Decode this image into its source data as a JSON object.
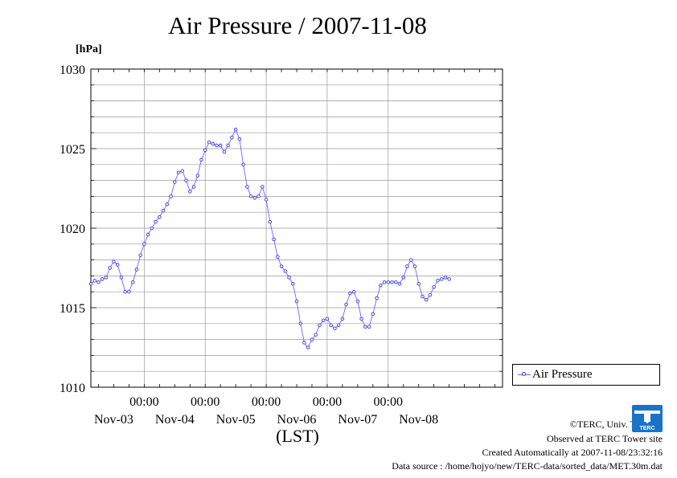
{
  "title": "Air Pressure / 2007-11-08",
  "unit_label": "[hPa]",
  "xlabel": "(LST)",
  "legend": {
    "label": "Air Pressure"
  },
  "credits": {
    "copyright": "©TERC, Univ. Tsukuba",
    "observed": "Observed at TERC Tower site",
    "created": "Created Automatically at 2007-11-08/23:32:16",
    "source": "Data source : /home/hojyo/new/TERC-data/sorted_data/MET.30m.dat"
  },
  "logo_text": "TERC",
  "colors": {
    "series": "#3333ee",
    "line": "#6666ff",
    "grid": "#999999",
    "logo": "#1a73c8"
  },
  "chart_data": {
    "type": "line",
    "title": "Air Pressure / 2007-11-08",
    "ylabel": "[hPa]",
    "xlabel": "(LST)",
    "ylim": [
      1010,
      1030
    ],
    "yticks": [
      1010,
      1015,
      1020,
      1025,
      1030
    ],
    "xlim_hours": [
      -21,
      141
    ],
    "xticks": [
      {
        "hour": 0,
        "time": "00:00",
        "date": "Nov-04"
      },
      {
        "hour": 24,
        "time": "00:00",
        "date": "Nov-05"
      },
      {
        "hour": 48,
        "time": "00:00",
        "date": "Nov-06"
      },
      {
        "hour": 72,
        "time": "00:00",
        "date": "Nov-07"
      },
      {
        "hour": 96,
        "time": "00:00",
        "date": "Nov-08"
      }
    ],
    "date_labels": [
      {
        "hour": -12,
        "text": "Nov-03"
      },
      {
        "hour": 12,
        "text": "Nov-04"
      },
      {
        "hour": 36,
        "text": "Nov-05"
      },
      {
        "hour": 60,
        "text": "Nov-06"
      },
      {
        "hour": 84,
        "text": "Nov-07"
      },
      {
        "hour": 108,
        "text": "Nov-08"
      }
    ],
    "grid": true,
    "legend_position": "right",
    "series": [
      {
        "name": "Air Pressure",
        "points": [
          [
            -21,
            1016.5
          ],
          [
            -19.5,
            1016.7
          ],
          [
            -18,
            1016.6
          ],
          [
            -16.5,
            1016.8
          ],
          [
            -15,
            1016.9
          ],
          [
            -13.5,
            1017.5
          ],
          [
            -12,
            1017.9
          ],
          [
            -10.5,
            1017.7
          ],
          [
            -9,
            1016.9
          ],
          [
            -7.5,
            1016.0
          ],
          [
            -6,
            1016.0
          ],
          [
            -4.5,
            1016.6
          ],
          [
            -3,
            1017.4
          ],
          [
            -1.5,
            1018.3
          ],
          [
            0,
            1019.0
          ],
          [
            1.5,
            1019.6
          ],
          [
            3,
            1020.0
          ],
          [
            4.5,
            1020.4
          ],
          [
            6,
            1020.7
          ],
          [
            7.5,
            1021.1
          ],
          [
            9,
            1021.5
          ],
          [
            10.5,
            1022.0
          ],
          [
            12,
            1022.9
          ],
          [
            13.5,
            1023.5
          ],
          [
            15,
            1023.6
          ],
          [
            16.5,
            1023.0
          ],
          [
            18,
            1022.3
          ],
          [
            19.5,
            1022.6
          ],
          [
            21,
            1023.3
          ],
          [
            22.5,
            1024.3
          ],
          [
            24,
            1024.9
          ],
          [
            25.5,
            1025.4
          ],
          [
            27,
            1025.3
          ],
          [
            28.5,
            1025.2
          ],
          [
            30,
            1025.2
          ],
          [
            31.5,
            1024.8
          ],
          [
            33,
            1025.2
          ],
          [
            34.5,
            1025.7
          ],
          [
            36,
            1026.2
          ],
          [
            37.5,
            1025.6
          ],
          [
            39,
            1024.0
          ],
          [
            40.5,
            1022.6
          ],
          [
            42,
            1022.0
          ],
          [
            43.5,
            1021.9
          ],
          [
            45,
            1022.0
          ],
          [
            46.5,
            1022.6
          ],
          [
            48,
            1021.8
          ],
          [
            49.5,
            1020.4
          ],
          [
            51,
            1019.3
          ],
          [
            52.5,
            1018.2
          ],
          [
            54,
            1017.6
          ],
          [
            55.5,
            1017.3
          ],
          [
            57,
            1016.9
          ],
          [
            58.5,
            1016.5
          ],
          [
            60,
            1015.4
          ],
          [
            61.5,
            1014.0
          ],
          [
            63,
            1012.8
          ],
          [
            64.5,
            1012.5
          ],
          [
            66,
            1013.0
          ],
          [
            67.5,
            1013.3
          ],
          [
            69,
            1013.9
          ],
          [
            70.5,
            1014.2
          ],
          [
            72,
            1014.3
          ],
          [
            73.5,
            1013.9
          ],
          [
            75,
            1013.7
          ],
          [
            76.5,
            1013.9
          ],
          [
            78,
            1014.3
          ],
          [
            79.5,
            1015.2
          ],
          [
            81,
            1015.9
          ],
          [
            82.5,
            1016.0
          ],
          [
            84,
            1015.4
          ],
          [
            85.5,
            1014.3
          ],
          [
            87,
            1013.8
          ],
          [
            88.5,
            1013.8
          ],
          [
            90,
            1014.6
          ],
          [
            91.5,
            1015.6
          ],
          [
            93,
            1016.4
          ],
          [
            94.5,
            1016.6
          ],
          [
            96,
            1016.6
          ],
          [
            97.5,
            1016.6
          ],
          [
            99,
            1016.6
          ],
          [
            100.5,
            1016.5
          ],
          [
            102,
            1016.9
          ],
          [
            103.5,
            1017.6
          ],
          [
            105,
            1018.0
          ],
          [
            106.5,
            1017.6
          ],
          [
            108,
            1016.5
          ],
          [
            109.5,
            1015.7
          ],
          [
            111,
            1015.5
          ],
          [
            112.5,
            1015.8
          ],
          [
            114,
            1016.3
          ],
          [
            115.5,
            1016.7
          ],
          [
            117,
            1016.8
          ],
          [
            118.5,
            1016.9
          ],
          [
            120,
            1016.8
          ]
        ]
      }
    ]
  }
}
